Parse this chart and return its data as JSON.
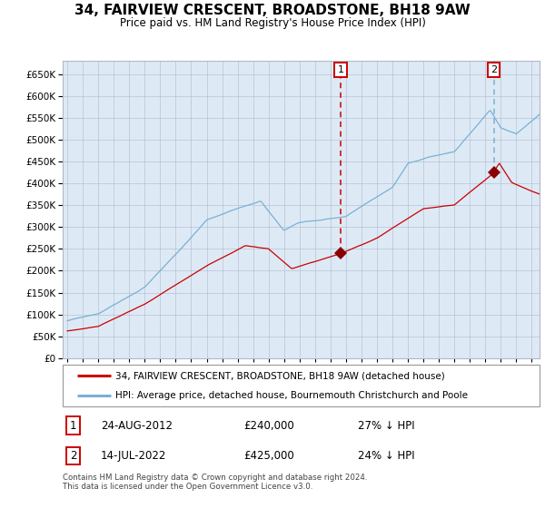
{
  "title": "34, FAIRVIEW CRESCENT, BROADSTONE, BH18 9AW",
  "subtitle": "Price paid vs. HM Land Registry's House Price Index (HPI)",
  "legend_line1": "34, FAIRVIEW CRESCENT, BROADSTONE, BH18 9AW (detached house)",
  "legend_line2": "HPI: Average price, detached house, Bournemouth Christchurch and Poole",
  "annotation1_date": "24-AUG-2012",
  "annotation1_price": "£240,000",
  "annotation1_hpi": "27% ↓ HPI",
  "annotation2_date": "14-JUL-2022",
  "annotation2_price": "£425,000",
  "annotation2_hpi": "24% ↓ HPI",
  "footnote": "Contains HM Land Registry data © Crown copyright and database right 2024.\nThis data is licensed under the Open Government Licence v3.0.",
  "ylim": [
    0,
    680000
  ],
  "yticks": [
    0,
    50000,
    100000,
    150000,
    200000,
    250000,
    300000,
    350000,
    400000,
    450000,
    500000,
    550000,
    600000,
    650000
  ],
  "hpi_color": "#7ab0d4",
  "property_color": "#cc0000",
  "chart_bg": "#ddeaf5",
  "grid_color": "#b0b8cc",
  "sale1_x": 2012.65,
  "sale1_y": 240000,
  "sale2_x": 2022.54,
  "sale2_y": 425000,
  "xmin": 1994.7,
  "xmax": 2025.5
}
